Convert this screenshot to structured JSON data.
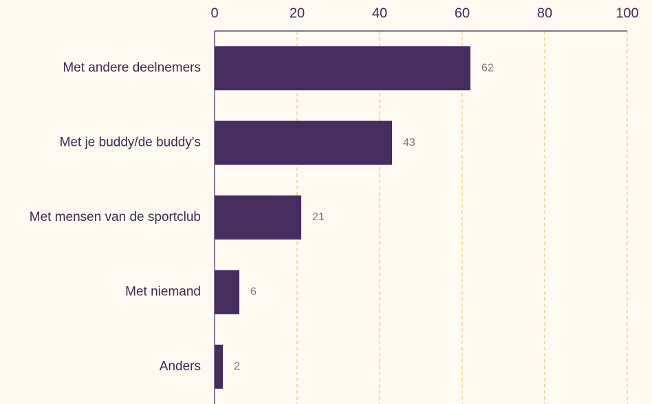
{
  "chart_data": {
    "type": "bar",
    "orientation": "horizontal",
    "categories": [
      "Met andere deelnemers",
      "Met je buddy/de buddy's",
      "Met mensen van de sportclub",
      "Met niemand",
      "Anders"
    ],
    "values": [
      62,
      43,
      21,
      6,
      2
    ],
    "color": "#472c5e",
    "xlim": [
      0,
      100
    ],
    "xticks": [
      0,
      20,
      40,
      60,
      80,
      100
    ],
    "grid": true,
    "grid_color": "#f3c66f"
  }
}
